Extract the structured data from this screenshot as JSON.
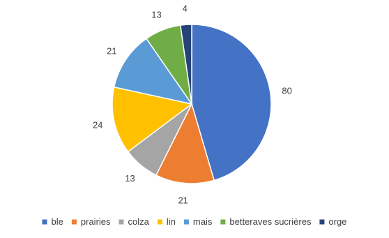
{
  "chart_data": {
    "type": "pie",
    "title": "",
    "categories": [
      "ble",
      "prairies",
      "colza",
      "lin",
      "mais",
      "betteraves sucrières",
      "orge"
    ],
    "values": [
      80,
      21,
      13,
      24,
      21,
      13,
      4
    ],
    "colors": [
      "#4472c4",
      "#ed7d31",
      "#a5a5a5",
      "#ffc000",
      "#5b9bd5",
      "#70ad47",
      "#264478"
    ],
    "start_angle_deg": 0,
    "direction": "clockwise",
    "legend_position": "bottom",
    "data_labels": "outside"
  }
}
